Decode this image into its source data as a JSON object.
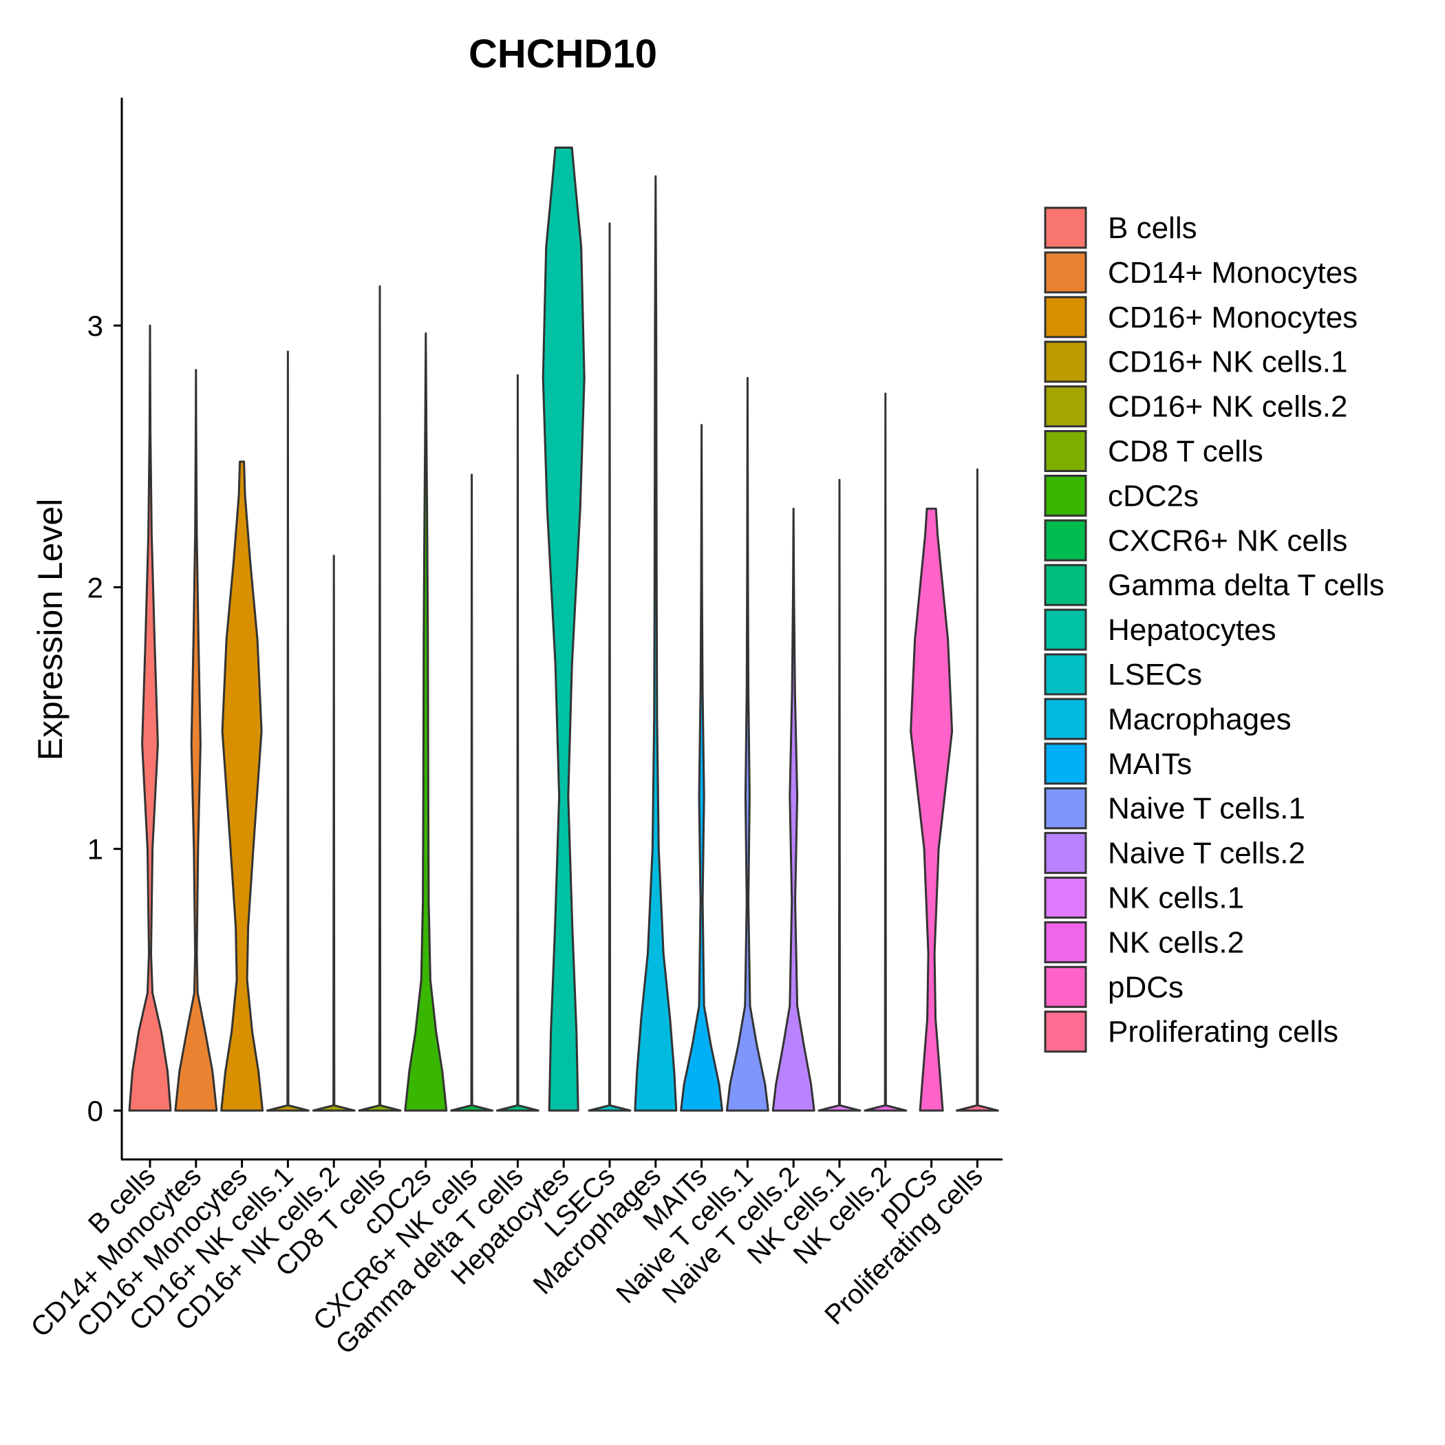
{
  "chart_data": {
    "type": "violin",
    "title": "CHCHD10",
    "xlabel": "",
    "ylabel": "Expression Level",
    "ylim": [
      -0.18,
      3.85
    ],
    "yticks": [
      0,
      1,
      2,
      3
    ],
    "grid": false,
    "legend_position": "right",
    "categories": [
      {
        "name": "B cells",
        "color": "#F8766D",
        "max": 3.0,
        "profile": [
          [
            0,
            1
          ],
          [
            0.15,
            0.85
          ],
          [
            0.3,
            0.55
          ],
          [
            0.45,
            0.12
          ],
          [
            0.6,
            0.05
          ],
          [
            1.0,
            0.12
          ],
          [
            1.4,
            0.38
          ],
          [
            1.8,
            0.22
          ],
          [
            2.2,
            0.08
          ],
          [
            2.6,
            0.02
          ],
          [
            3.0,
            0
          ]
        ]
      },
      {
        "name": "CD14+ Monocytes",
        "color": "#EA8331",
        "max": 2.83,
        "profile": [
          [
            0,
            1
          ],
          [
            0.15,
            0.8
          ],
          [
            0.3,
            0.45
          ],
          [
            0.45,
            0.08
          ],
          [
            0.6,
            0.04
          ],
          [
            1.0,
            0.1
          ],
          [
            1.4,
            0.22
          ],
          [
            1.8,
            0.12
          ],
          [
            2.2,
            0.04
          ],
          [
            2.6,
            0.01
          ],
          [
            2.83,
            0
          ]
        ]
      },
      {
        "name": "CD16+ Monocytes",
        "color": "#D89000",
        "max": 2.48,
        "profile": [
          [
            0,
            1
          ],
          [
            0.15,
            0.8
          ],
          [
            0.3,
            0.5
          ],
          [
            0.5,
            0.25
          ],
          [
            0.7,
            0.3
          ],
          [
            1.0,
            0.55
          ],
          [
            1.45,
            0.95
          ],
          [
            1.8,
            0.75
          ],
          [
            2.1,
            0.4
          ],
          [
            2.35,
            0.15
          ],
          [
            2.48,
            0.1
          ]
        ]
      },
      {
        "name": "CD16+ NK cells.1",
        "color": "#C09B00",
        "max": 2.9,
        "profile": [
          [
            0,
            1
          ],
          [
            0.02,
            0.02
          ],
          [
            2.9,
            0
          ]
        ]
      },
      {
        "name": "CD16+ NK cells.2",
        "color": "#A3A500",
        "max": 2.12,
        "profile": [
          [
            0,
            1
          ],
          [
            0.02,
            0.02
          ],
          [
            2.12,
            0
          ]
        ]
      },
      {
        "name": "CD8 T cells",
        "color": "#7CAE00",
        "max": 3.15,
        "profile": [
          [
            0,
            1
          ],
          [
            0.02,
            0.02
          ],
          [
            3.15,
            0
          ]
        ]
      },
      {
        "name": "cDC2s",
        "color": "#39B600",
        "max": 2.97,
        "profile": [
          [
            0,
            1
          ],
          [
            0.15,
            0.8
          ],
          [
            0.3,
            0.5
          ],
          [
            0.5,
            0.22
          ],
          [
            0.8,
            0.14
          ],
          [
            1.2,
            0.12
          ],
          [
            1.8,
            0.1
          ],
          [
            2.2,
            0.07
          ],
          [
            2.6,
            0.03
          ],
          [
            2.97,
            0
          ]
        ]
      },
      {
        "name": "CXCR6+ NK cells",
        "color": "#00BB4E",
        "max": 2.43,
        "profile": [
          [
            0,
            1
          ],
          [
            0.02,
            0.02
          ],
          [
            2.43,
            0
          ]
        ]
      },
      {
        "name": "Gamma delta T cells",
        "color": "#00BF7D",
        "max": 2.81,
        "profile": [
          [
            0,
            1
          ],
          [
            0.02,
            0.02
          ],
          [
            2.81,
            0
          ]
        ]
      },
      {
        "name": "Hepatocytes",
        "color": "#00C1A3",
        "max": 3.68,
        "profile": [
          [
            0,
            0.7
          ],
          [
            0.3,
            0.62
          ],
          [
            0.7,
            0.42
          ],
          [
            1.2,
            0.22
          ],
          [
            1.7,
            0.4
          ],
          [
            2.3,
            0.8
          ],
          [
            2.8,
            1
          ],
          [
            3.3,
            0.85
          ],
          [
            3.55,
            0.55
          ],
          [
            3.68,
            0.4
          ]
        ]
      },
      {
        "name": "LSECs",
        "color": "#00BFC4",
        "max": 3.39,
        "profile": [
          [
            0,
            1
          ],
          [
            0.02,
            0.02
          ],
          [
            3.39,
            0
          ]
        ]
      },
      {
        "name": "Macrophages",
        "color": "#00BAE0",
        "max": 3.57,
        "profile": [
          [
            0,
            1
          ],
          [
            0.15,
            0.9
          ],
          [
            0.35,
            0.7
          ],
          [
            0.6,
            0.38
          ],
          [
            1.0,
            0.15
          ],
          [
            1.5,
            0.07
          ],
          [
            2.0,
            0.05
          ],
          [
            3.0,
            0.03
          ],
          [
            3.57,
            0
          ]
        ]
      },
      {
        "name": "MAITs",
        "color": "#00B0F6",
        "max": 2.62,
        "profile": [
          [
            0,
            1
          ],
          [
            0.1,
            0.85
          ],
          [
            0.25,
            0.45
          ],
          [
            0.4,
            0.12
          ],
          [
            0.8,
            0.05
          ],
          [
            1.2,
            0.12
          ],
          [
            1.6,
            0.05
          ],
          [
            2.0,
            0.02
          ],
          [
            2.62,
            0
          ]
        ]
      },
      {
        "name": "Naive T cells.1",
        "color": "#7F96FF",
        "max": 2.8,
        "profile": [
          [
            0,
            1
          ],
          [
            0.1,
            0.85
          ],
          [
            0.25,
            0.45
          ],
          [
            0.4,
            0.12
          ],
          [
            0.8,
            0.04
          ],
          [
            1.2,
            0.1
          ],
          [
            1.6,
            0.04
          ],
          [
            2.0,
            0.02
          ],
          [
            2.8,
            0
          ]
        ]
      },
      {
        "name": "Naive T cells.2",
        "color": "#B983FF",
        "max": 2.3,
        "profile": [
          [
            0,
            1
          ],
          [
            0.1,
            0.85
          ],
          [
            0.25,
            0.5
          ],
          [
            0.4,
            0.18
          ],
          [
            0.8,
            0.08
          ],
          [
            1.2,
            0.18
          ],
          [
            1.6,
            0.07
          ],
          [
            2.0,
            0.02
          ],
          [
            2.3,
            0
          ]
        ]
      },
      {
        "name": "NK cells.1",
        "color": "#E07AFF",
        "max": 2.41,
        "profile": [
          [
            0,
            1
          ],
          [
            0.02,
            0.02
          ],
          [
            2.41,
            0
          ]
        ]
      },
      {
        "name": "NK cells.2",
        "color": "#F066E8",
        "max": 2.74,
        "profile": [
          [
            0,
            1
          ],
          [
            0.02,
            0.02
          ],
          [
            2.74,
            0
          ]
        ]
      },
      {
        "name": "pDCs",
        "color": "#FF62C8",
        "max": 2.3,
        "profile": [
          [
            0,
            0.55
          ],
          [
            0.15,
            0.4
          ],
          [
            0.35,
            0.2
          ],
          [
            0.6,
            0.15
          ],
          [
            1.0,
            0.35
          ],
          [
            1.45,
            1
          ],
          [
            1.8,
            0.8
          ],
          [
            2.0,
            0.55
          ],
          [
            2.2,
            0.3
          ],
          [
            2.3,
            0.22
          ]
        ]
      },
      {
        "name": "Proliferating cells",
        "color": "#FF6C91",
        "max": 2.45,
        "profile": [
          [
            0,
            1
          ],
          [
            0.02,
            0.02
          ],
          [
            2.45,
            0
          ]
        ]
      }
    ]
  }
}
